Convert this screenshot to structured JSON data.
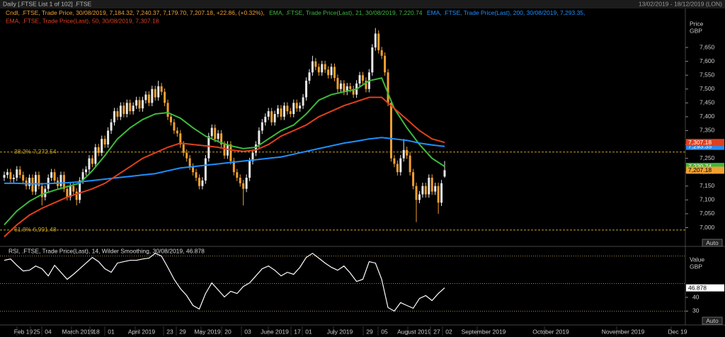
{
  "header": {
    "title": "Daily [.FTSE List 1 of 102] .FTSE",
    "range": "13/02/2019 - 18/12/2019 (LON)"
  },
  "chart_data": [
    {
      "type": "candlestick",
      "legend": "Cndl, .FTSE, Trade Price, 30/08/2019, 7,184.32, 7,240.37, 7,179.70, 7,207.18, +22.86, (+0.32%),",
      "axis_title": "Price",
      "axis_unit": "GBP",
      "auto": "Auto",
      "up_color": "#e8e8e8",
      "down_color": "#f0a030",
      "last": {
        "value": 7207.18,
        "label": "7,207.18"
      },
      "ylim": [
        6940,
        7765
      ],
      "yticks": [
        {
          "value": 7000,
          "label": "7,000"
        },
        {
          "value": 7050,
          "label": "7,050"
        },
        {
          "value": 7100,
          "label": "7,100"
        },
        {
          "value": 7150,
          "label": "7,150"
        },
        {
          "value": 7200,
          "label": "7,200"
        },
        {
          "value": 7250,
          "label": "7,250"
        },
        {
          "value": 7300,
          "label": "7,300"
        },
        {
          "value": 7350,
          "label": "7,350"
        },
        {
          "value": 7400,
          "label": "7,400"
        },
        {
          "value": 7450,
          "label": "7,450"
        },
        {
          "value": 7500,
          "label": "7,500"
        },
        {
          "value": 7550,
          "label": "7,550"
        },
        {
          "value": 7600,
          "label": "7,600"
        },
        {
          "value": 7650,
          "label": "7,650"
        }
      ],
      "fib_levels": [
        {
          "value": 7272.54,
          "label": "38.2% 7,272.54"
        },
        {
          "value": 6991.48,
          "label": "61.8% 6,991.48"
        }
      ],
      "fib_color": "#c8a020",
      "x_labels": [
        "Feb 19",
        "25",
        "04",
        "March 2019",
        "18",
        "01",
        "April 2019",
        "23",
        "29",
        "May 2019",
        "20",
        "03",
        "June 2019",
        "17",
        "01",
        "July 2019",
        "29",
        "05",
        "August 2019",
        "27",
        "02",
        "September 2019",
        "October 2019",
        "November 2019",
        "Dec 19"
      ],
      "ohlc": [
        [
          7180,
          7202,
          7168,
          7190
        ],
        [
          7190,
          7212,
          7178,
          7200
        ],
        [
          7200,
          7212,
          7163,
          7175
        ],
        [
          7175,
          7192,
          7163,
          7180
        ],
        [
          7180,
          7222,
          7168,
          7210
        ],
        [
          7210,
          7222,
          7178,
          7190
        ],
        [
          7190,
          7202,
          7158,
          7170
        ],
        [
          7170,
          7182,
          7138,
          7150
        ],
        [
          7150,
          7192,
          7138,
          7180
        ],
        [
          7180,
          7192,
          7118,
          7130
        ],
        [
          7130,
          7202,
          7118,
          7190
        ],
        [
          7190,
          7202,
          7138,
          7150
        ],
        [
          7150,
          7162,
          7080,
          7110
        ],
        [
          7110,
          7152,
          7098,
          7140
        ],
        [
          7140,
          7192,
          7128,
          7180
        ],
        [
          7180,
          7212,
          7168,
          7200
        ],
        [
          7200,
          7212,
          7158,
          7170
        ],
        [
          7170,
          7182,
          7138,
          7150
        ],
        [
          7150,
          7202,
          7138,
          7190
        ],
        [
          7190,
          7202,
          7128,
          7140
        ],
        [
          7140,
          7152,
          7098,
          7110
        ],
        [
          7110,
          7162,
          7098,
          7150
        ],
        [
          7150,
          7162,
          7118,
          7130
        ],
        [
          7130,
          7142,
          7080,
          7100
        ],
        [
          7100,
          7182,
          7088,
          7170
        ],
        [
          7170,
          7212,
          7158,
          7200
        ],
        [
          7200,
          7222,
          7188,
          7210
        ],
        [
          7210,
          7262,
          7198,
          7250
        ],
        [
          7250,
          7262,
          7218,
          7230
        ],
        [
          7230,
          7302,
          7218,
          7290
        ],
        [
          7290,
          7302,
          7258,
          7270
        ],
        [
          7270,
          7332,
          7258,
          7320
        ],
        [
          7320,
          7332,
          7288,
          7300
        ],
        [
          7300,
          7362,
          7288,
          7350
        ],
        [
          7350,
          7392,
          7338,
          7380
        ],
        [
          7380,
          7432,
          7368,
          7420
        ],
        [
          7420,
          7432,
          7388,
          7400
        ],
        [
          7400,
          7452,
          7388,
          7440
        ],
        [
          7440,
          7452,
          7398,
          7410
        ],
        [
          7410,
          7462,
          7398,
          7450
        ],
        [
          7450,
          7462,
          7408,
          7420
        ],
        [
          7420,
          7452,
          7408,
          7440
        ],
        [
          7440,
          7472,
          7428,
          7460
        ],
        [
          7460,
          7472,
          7418,
          7430
        ],
        [
          7430,
          7472,
          7418,
          7460
        ],
        [
          7460,
          7492,
          7448,
          7480
        ],
        [
          7480,
          7492,
          7438,
          7450
        ],
        [
          7450,
          7512,
          7438,
          7500
        ],
        [
          7500,
          7512,
          7458,
          7470
        ],
        [
          7470,
          7530,
          7458,
          7510
        ],
        [
          7510,
          7522,
          7478,
          7490
        ],
        [
          7490,
          7502,
          7438,
          7450
        ],
        [
          7450,
          7462,
          7388,
          7400
        ],
        [
          7400,
          7412,
          7368,
          7380
        ],
        [
          7380,
          7392,
          7338,
          7350
        ],
        [
          7350,
          7362,
          7328,
          7340
        ],
        [
          7340,
          7352,
          7288,
          7300
        ],
        [
          7300,
          7312,
          7258,
          7270
        ],
        [
          7270,
          7282,
          7238,
          7250
        ],
        [
          7250,
          7262,
          7208,
          7220
        ],
        [
          7220,
          7232,
          7188,
          7200
        ],
        [
          7200,
          7212,
          7168,
          7180
        ],
        [
          7180,
          7192,
          7138,
          7150
        ],
        [
          7150,
          7182,
          7138,
          7170
        ],
        [
          7170,
          7262,
          7158,
          7250
        ],
        [
          7250,
          7342,
          7238,
          7330
        ],
        [
          7330,
          7372,
          7318,
          7360
        ],
        [
          7360,
          7372,
          7308,
          7320
        ],
        [
          7320,
          7352,
          7308,
          7340
        ],
        [
          7340,
          7352,
          7288,
          7300
        ],
        [
          7300,
          7312,
          7248,
          7260
        ],
        [
          7260,
          7312,
          7248,
          7300
        ],
        [
          7300,
          7312,
          7228,
          7240
        ],
        [
          7240,
          7252,
          7188,
          7200
        ],
        [
          7200,
          7212,
          7168,
          7180
        ],
        [
          7180,
          7192,
          7148,
          7160
        ],
        [
          7160,
          7172,
          7080,
          7140
        ],
        [
          7140,
          7192,
          7128,
          7180
        ],
        [
          7180,
          7252,
          7168,
          7240
        ],
        [
          7240,
          7282,
          7228,
          7270
        ],
        [
          7270,
          7312,
          7258,
          7300
        ],
        [
          7300,
          7362,
          7288,
          7350
        ],
        [
          7350,
          7392,
          7338,
          7380
        ],
        [
          7380,
          7412,
          7368,
          7400
        ],
        [
          7400,
          7432,
          7388,
          7420
        ],
        [
          7420,
          7432,
          7368,
          7380
        ],
        [
          7380,
          7422,
          7368,
          7410
        ],
        [
          7410,
          7442,
          7398,
          7430
        ],
        [
          7430,
          7442,
          7388,
          7400
        ],
        [
          7400,
          7452,
          7388,
          7440
        ],
        [
          7440,
          7452,
          7408,
          7420
        ],
        [
          7420,
          7432,
          7398,
          7410
        ],
        [
          7410,
          7462,
          7398,
          7450
        ],
        [
          7450,
          7462,
          7418,
          7430
        ],
        [
          7430,
          7452,
          7418,
          7440
        ],
        [
          7440,
          7482,
          7428,
          7470
        ],
        [
          7470,
          7542,
          7458,
          7530
        ],
        [
          7530,
          7572,
          7518,
          7560
        ],
        [
          7560,
          7620,
          7548,
          7600
        ],
        [
          7600,
          7612,
          7568,
          7580
        ],
        [
          7580,
          7592,
          7548,
          7560
        ],
        [
          7560,
          7602,
          7548,
          7590
        ],
        [
          7590,
          7602,
          7558,
          7570
        ],
        [
          7570,
          7582,
          7538,
          7550
        ],
        [
          7550,
          7592,
          7538,
          7580
        ],
        [
          7580,
          7592,
          7528,
          7540
        ],
        [
          7540,
          7552,
          7488,
          7500
        ],
        [
          7500,
          7532,
          7488,
          7520
        ],
        [
          7520,
          7532,
          7478,
          7490
        ],
        [
          7490,
          7522,
          7478,
          7510
        ],
        [
          7510,
          7522,
          7488,
          7500
        ],
        [
          7500,
          7512,
          7468,
          7480
        ],
        [
          7480,
          7532,
          7468,
          7520
        ],
        [
          7520,
          7562,
          7508,
          7550
        ],
        [
          7550,
          7562,
          7518,
          7530
        ],
        [
          7530,
          7542,
          7488,
          7500
        ],
        [
          7500,
          7572,
          7488,
          7560
        ],
        [
          7560,
          7662,
          7548,
          7650
        ],
        [
          7650,
          7720,
          7638,
          7700
        ],
        [
          7700,
          7712,
          7628,
          7640
        ],
        [
          7640,
          7652,
          7608,
          7620
        ],
        [
          7620,
          7632,
          7548,
          7560
        ],
        [
          7560,
          7572,
          7438,
          7450
        ],
        [
          7450,
          7462,
          7238,
          7250
        ],
        [
          7250,
          7262,
          7218,
          7230
        ],
        [
          7230,
          7242,
          7188,
          7200
        ],
        [
          7200,
          7262,
          7188,
          7250
        ],
        [
          7250,
          7320,
          7238,
          7280
        ],
        [
          7280,
          7292,
          7248,
          7260
        ],
        [
          7260,
          7272,
          7188,
          7200
        ],
        [
          7200,
          7212,
          7138,
          7150
        ],
        [
          7150,
          7162,
          7020,
          7100
        ],
        [
          7100,
          7132,
          7088,
          7120
        ],
        [
          7120,
          7162,
          7108,
          7150
        ],
        [
          7150,
          7162,
          7108,
          7120
        ],
        [
          7120,
          7192,
          7108,
          7180
        ],
        [
          7180,
          7192,
          7118,
          7130
        ],
        [
          7130,
          7162,
          7118,
          7150
        ],
        [
          7150,
          7162,
          7050,
          7090
        ],
        [
          7090,
          7172,
          7078,
          7160
        ],
        [
          7184.32,
          7240.37,
          7179.7,
          7207.18
        ]
      ],
      "series": [
        {
          "name": "EMA, .FTSE, Trade Price(Last), 21, 30/08/2019, 7,220.74",
          "color": "#3cb93c",
          "last": {
            "value": 7220.74,
            "label": "7,220.74"
          },
          "values": [
            7010,
            7060,
            7095,
            7120,
            7135,
            7148,
            7160,
            7205,
            7260,
            7320,
            7360,
            7390,
            7410,
            7415,
            7395,
            7360,
            7330,
            7310,
            7295,
            7285,
            7290,
            7320,
            7350,
            7370,
            7410,
            7460,
            7480,
            7490,
            7500,
            7530,
            7540,
            7430,
            7360,
            7300,
            7250,
            7220.74
          ]
        },
        {
          "name": "EMA, .FTSE, Trade Price(Last), 200, 30/08/2019, 7,293.35,",
          "color": "#1e90ff",
          "last": {
            "value": 7293.35,
            "label": "7,293.35"
          },
          "values": [
            7160,
            7160,
            7158,
            7158,
            7160,
            7162,
            7165,
            7170,
            7175,
            7180,
            7185,
            7190,
            7195,
            7205,
            7215,
            7220,
            7225,
            7230,
            7235,
            7240,
            7245,
            7250,
            7255,
            7265,
            7275,
            7285,
            7295,
            7305,
            7312,
            7320,
            7325,
            7320,
            7315,
            7305,
            7298,
            7293.35
          ]
        },
        {
          "name": "EMA, .FTSE, Trade Price(Last), 50, 30/08/2019, 7,307.18",
          "color": "#e0401e",
          "last": {
            "value": 7307.18,
            "label": "7,307.18"
          },
          "values": [
            6967,
            7010,
            7045,
            7070,
            7090,
            7110,
            7125,
            7140,
            7160,
            7190,
            7220,
            7250,
            7270,
            7290,
            7305,
            7300,
            7295,
            7290,
            7280,
            7275,
            7280,
            7300,
            7330,
            7350,
            7370,
            7400,
            7420,
            7440,
            7455,
            7470,
            7470,
            7430,
            7390,
            7350,
            7320,
            7307.18
          ]
        }
      ]
    },
    {
      "type": "line",
      "legend": "RSI, .FTSE, Trade Price(Last), 14, Wilder Smoothing, 30/08/2019, 46.878",
      "axis_title": "Value",
      "axis_unit": "GBP",
      "auto": "Auto",
      "color": "#ffffff",
      "last": {
        "value": 46.878,
        "label": "46.878"
      },
      "ylim": [
        22,
        76
      ],
      "yticks": [
        30,
        40
      ],
      "levels": [
        70,
        50,
        30
      ],
      "level_color": "#9a8a50",
      "values": [
        66.9,
        67.9,
        63.3,
        59.2,
        59.7,
        62.8,
        60.8,
        55.6,
        63.3,
        58.2,
        53.1,
        56.7,
        60.8,
        64.9,
        69,
        65.9,
        60.8,
        58.2,
        64.9,
        65.9,
        66.9,
        66.9,
        67.9,
        68.5,
        72,
        70,
        61.8,
        53.1,
        46.4,
        41.3,
        34.1,
        31.5,
        42.8,
        50.5,
        45.4,
        40.3,
        44.4,
        42.8,
        47.9,
        50.5,
        55.6,
        60.8,
        62.8,
        59.7,
        55.6,
        58.2,
        56.7,
        61.8,
        69,
        72,
        68.5,
        64.9,
        61.8,
        59.7,
        62.8,
        57.7,
        51.5,
        53.1,
        65.9,
        64.9,
        53.1,
        32.6,
        30,
        36.2,
        34.1,
        32.1,
        39.2,
        41.3,
        37.7,
        42.8,
        46.878
      ]
    }
  ]
}
